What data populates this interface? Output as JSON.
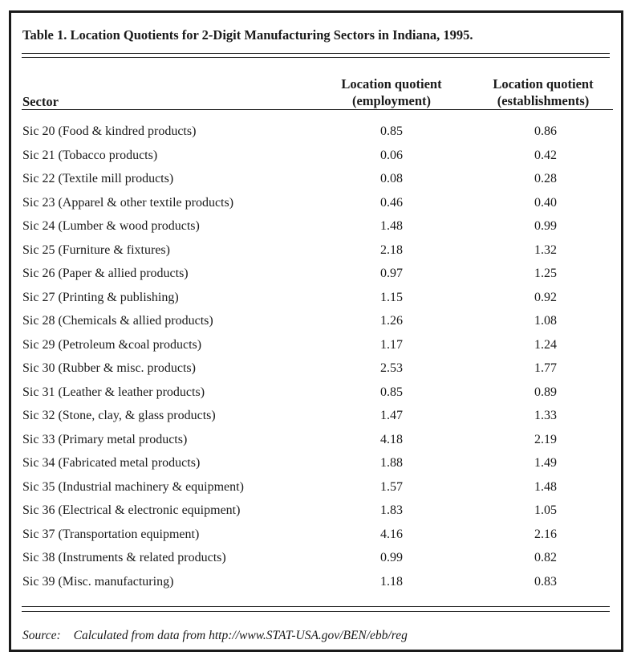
{
  "title": "Table 1. Location Quotients for 2-Digit Manufacturing Sectors in Indiana, 1995.",
  "columns": {
    "sector": "Sector",
    "employment": [
      "Location quotient",
      "(employment)"
    ],
    "establishments": [
      "Location quotient",
      "(establishments)"
    ]
  },
  "rows": [
    {
      "sector": "Sic 20 (Food & kindred products)",
      "employment": "0.85",
      "establishments": "0.86"
    },
    {
      "sector": "Sic 21 (Tobacco products)",
      "employment": "0.06",
      "establishments": "0.42"
    },
    {
      "sector": "Sic 22 (Textile mill products)",
      "employment": "0.08",
      "establishments": "0.28"
    },
    {
      "sector": "Sic 23 (Apparel & other textile products)",
      "employment": "0.46",
      "establishments": "0.40"
    },
    {
      "sector": "Sic 24 (Lumber & wood products)",
      "employment": "1.48",
      "establishments": "0.99"
    },
    {
      "sector": "Sic 25 (Furniture & fixtures)",
      "employment": "2.18",
      "establishments": "1.32"
    },
    {
      "sector": "Sic 26 (Paper & allied products)",
      "employment": "0.97",
      "establishments": "1.25"
    },
    {
      "sector": "Sic 27 (Printing & publishing)",
      "employment": "1.15",
      "establishments": "0.92"
    },
    {
      "sector": "Sic 28 (Chemicals & allied products)",
      "employment": "1.26",
      "establishments": "1.08"
    },
    {
      "sector": "Sic 29 (Petroleum &coal products)",
      "employment": "1.17",
      "establishments": "1.24"
    },
    {
      "sector": "Sic 30 (Rubber & misc. products)",
      "employment": "2.53",
      "establishments": "1.77"
    },
    {
      "sector": "Sic 31 (Leather & leather products)",
      "employment": "0.85",
      "establishments": "0.89"
    },
    {
      "sector": "Sic 32 (Stone, clay, & glass products)",
      "employment": "1.47",
      "establishments": "1.33"
    },
    {
      "sector": "Sic 33 (Primary metal products)",
      "employment": "4.18",
      "establishments": "2.19"
    },
    {
      "sector": "Sic 34 (Fabricated metal products)",
      "employment": "1.88",
      "establishments": "1.49"
    },
    {
      "sector": "Sic 35 (Industrial machinery & equipment)",
      "employment": "1.57",
      "establishments": "1.48"
    },
    {
      "sector": "Sic 36 (Electrical & electronic equipment)",
      "employment": "1.83",
      "establishments": "1.05"
    },
    {
      "sector": "Sic 37 (Transportation equipment)",
      "employment": "4.16",
      "establishments": "2.16"
    },
    {
      "sector": "Sic 38 (Instruments & related products)",
      "employment": "0.99",
      "establishments": "0.82"
    },
    {
      "sector": "Sic 39 (Misc. manufacturing)",
      "employment": "1.18",
      "establishments": "0.83"
    }
  ],
  "source": {
    "label": "Source:",
    "text": "Calculated from data from http://www.STAT-USA.gov/BEN/ebb/reg"
  }
}
